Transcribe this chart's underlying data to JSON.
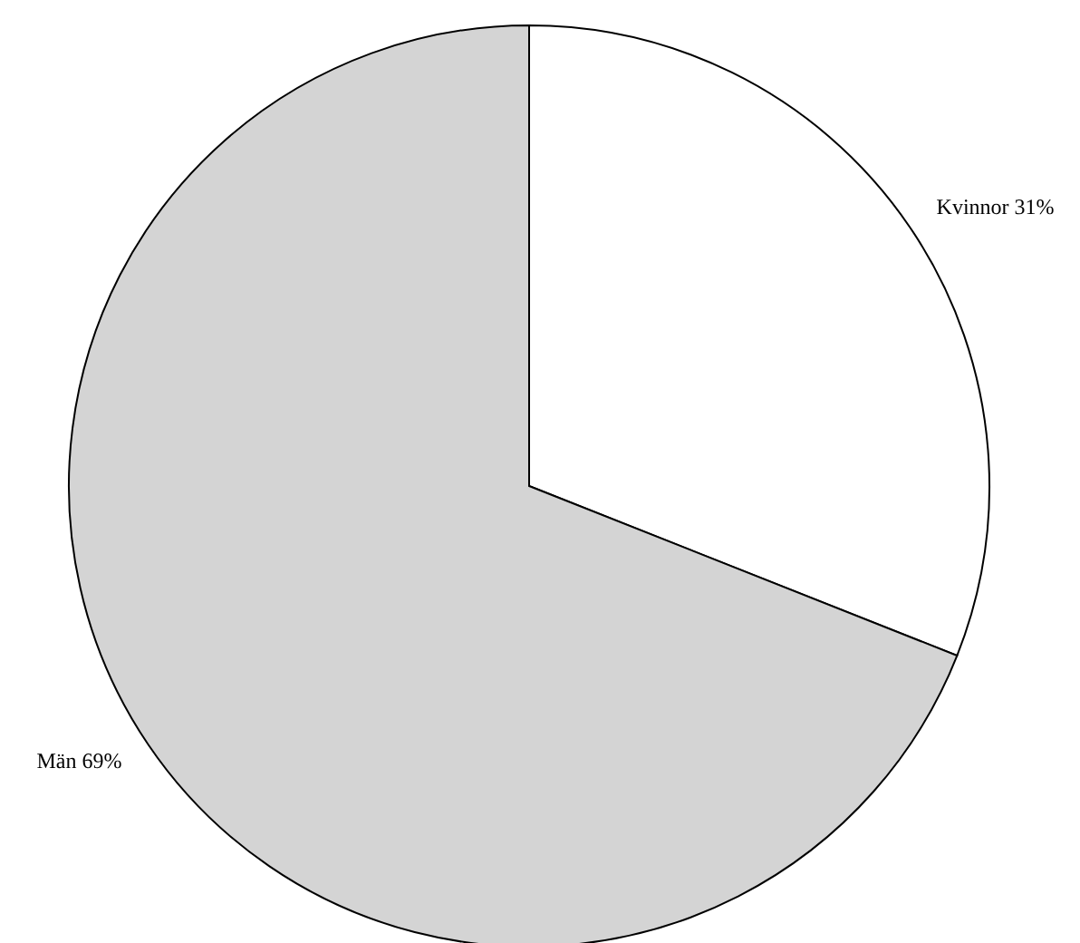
{
  "chart_data": {
    "type": "pie",
    "categories": [
      "Kvinnor",
      "Män"
    ],
    "values": [
      31,
      69
    ],
    "colors": [
      "#ffffff",
      "#d4d4d4"
    ],
    "value_labels": [
      "31%",
      "69%"
    ]
  }
}
